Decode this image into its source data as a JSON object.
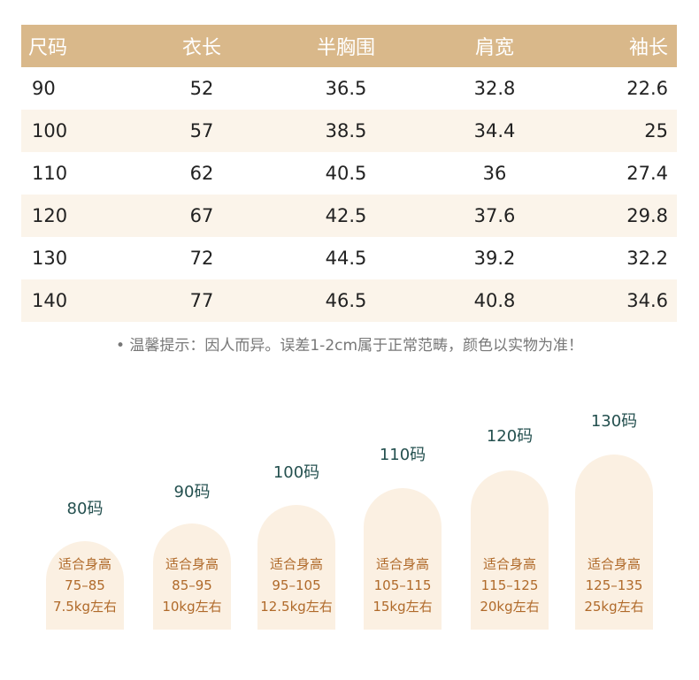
{
  "table": {
    "headers": [
      "尺码",
      "衣长",
      "半胸围",
      "肩宽",
      "袖长"
    ],
    "rows": [
      [
        "90",
        "52",
        "36.5",
        "32.8",
        "22.6"
      ],
      [
        "100",
        "57",
        "38.5",
        "34.4",
        "25"
      ],
      [
        "110",
        "62",
        "40.5",
        "36",
        "27.4"
      ],
      [
        "120",
        "67",
        "42.5",
        "37.6",
        "29.8"
      ],
      [
        "130",
        "72",
        "44.5",
        "39.2",
        "32.2"
      ],
      [
        "140",
        "77",
        "46.5",
        "40.8",
        "34.6"
      ]
    ]
  },
  "note": "• 温馨提示：因人而异。误差1-2cm属于正常范畴，颜色以实物为准！",
  "size_guide": [
    {
      "size": "80码",
      "label": "适合身高",
      "height": "75–85",
      "weight": "7.5kg左右"
    },
    {
      "size": "90码",
      "label": "适合身高",
      "height": "85–95",
      "weight": "10kg左右"
    },
    {
      "size": "100码",
      "label": "适合身高",
      "height": "95–105",
      "weight": "12.5kg左右"
    },
    {
      "size": "110码",
      "label": "适合身高",
      "height": "105–115",
      "weight": "15kg左右"
    },
    {
      "size": "120码",
      "label": "适合身高",
      "height": "115–125",
      "weight": "20kg左右"
    },
    {
      "size": "130码",
      "label": "适合身高",
      "height": "125–135",
      "weight": "25kg左右"
    }
  ],
  "colors": {
    "header_bg": "#d9b88a",
    "alt_row_bg": "#fbf4ea",
    "pill_bg": "#fbf0e2",
    "pill_text": "#b06a2a",
    "size_label": "#24504f"
  }
}
